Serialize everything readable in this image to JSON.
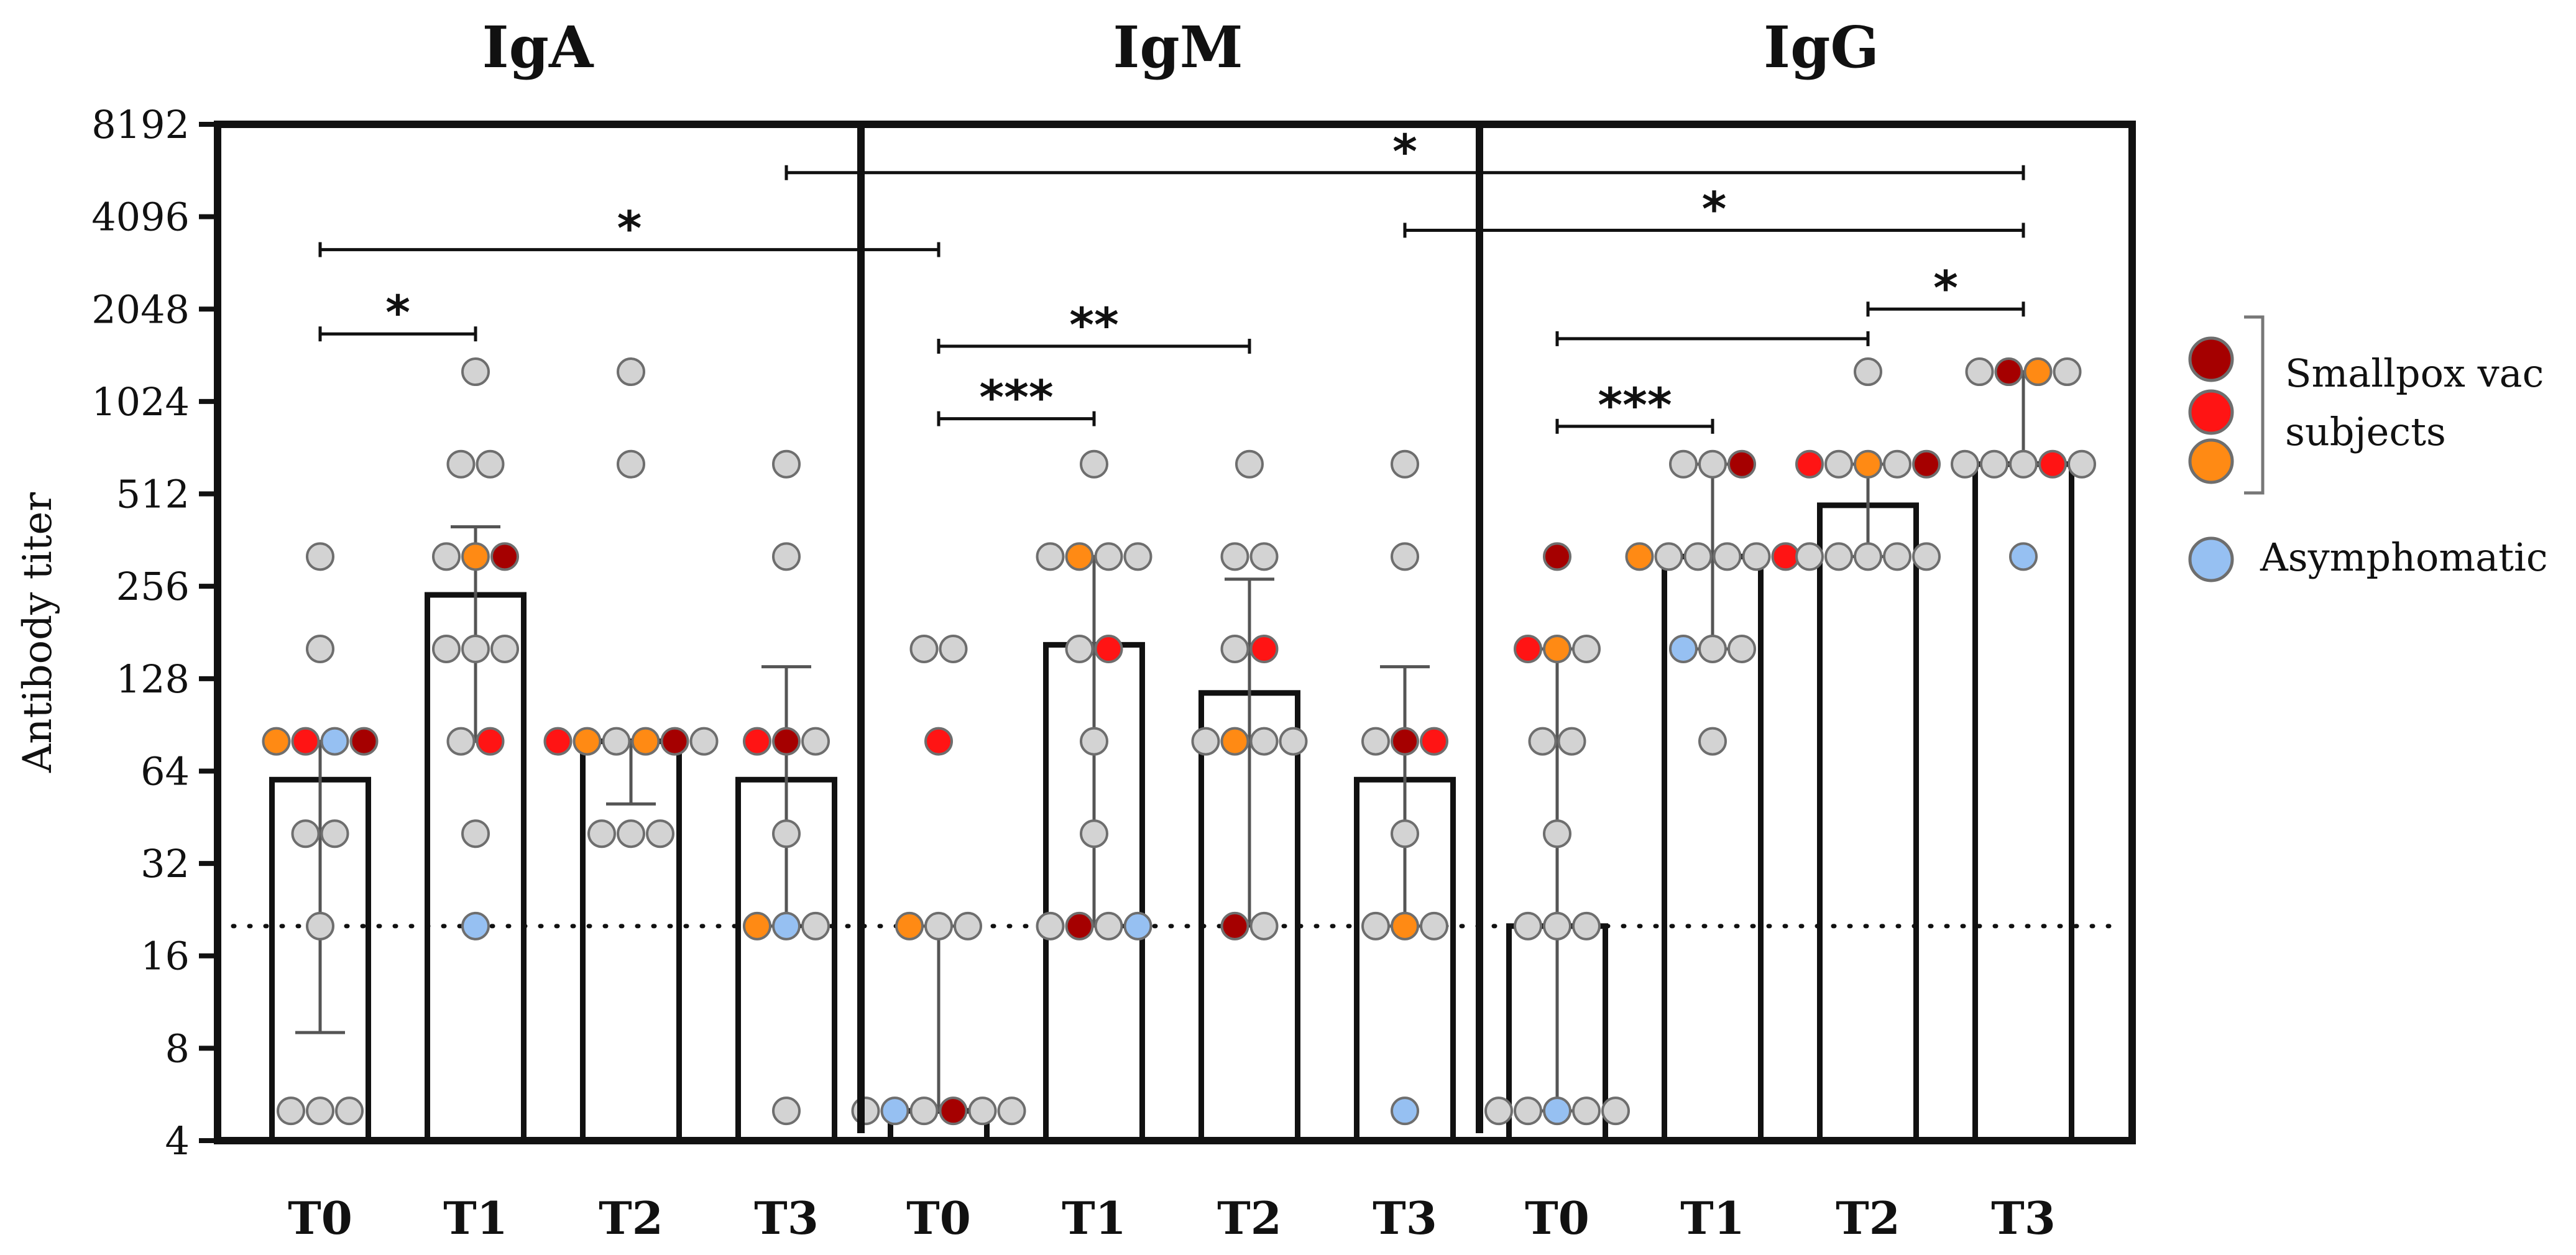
{
  "chart_data": {
    "type": "bar",
    "ylabel": "Antibody titer",
    "yscale": "log2",
    "ylim": [
      4,
      8192
    ],
    "yticks": [
      "4",
      "8",
      "16",
      "32",
      "64",
      "128",
      "256",
      "512",
      "1024",
      "2048",
      "4096",
      "8192"
    ],
    "threshold_line": 20,
    "panels": [
      {
        "title": "IgA",
        "groups": [
          {
            "label": "T0",
            "bar": 60,
            "error": [
              9,
              80
            ],
            "points": [
              [
                5,
                "gray"
              ],
              [
                5,
                "gray"
              ],
              [
                5,
                "gray"
              ],
              [
                20,
                "gray"
              ],
              [
                40,
                "gray"
              ],
              [
                40,
                "gray"
              ],
              [
                80,
                "orange"
              ],
              [
                80,
                "red"
              ],
              [
                80,
                "blue"
              ],
              [
                80,
                "darkred"
              ],
              [
                320,
                "gray"
              ],
              [
                160,
                "gray"
              ]
            ]
          },
          {
            "label": "T1",
            "bar": 240,
            "error": [
              80,
              400
            ],
            "points": [
              [
                20,
                "blue"
              ],
              [
                40,
                "gray"
              ],
              [
                80,
                "gray"
              ],
              [
                80,
                "red"
              ],
              [
                160,
                "gray"
              ],
              [
                160,
                "gray"
              ],
              [
                160,
                "gray"
              ],
              [
                320,
                "gray"
              ],
              [
                320,
                "orange"
              ],
              [
                320,
                "darkred"
              ],
              [
                640,
                "gray"
              ],
              [
                640,
                "gray"
              ],
              [
                1280,
                "gray"
              ]
            ]
          },
          {
            "label": "T2",
            "bar": 80,
            "error": [
              50,
              80
            ],
            "points": [
              [
                40,
                "gray"
              ],
              [
                40,
                "gray"
              ],
              [
                40,
                "gray"
              ],
              [
                80,
                "red"
              ],
              [
                80,
                "orange"
              ],
              [
                80,
                "gray"
              ],
              [
                80,
                "orange"
              ],
              [
                80,
                "darkred"
              ],
              [
                80,
                "gray"
              ],
              [
                640,
                "gray"
              ],
              [
                1280,
                "gray"
              ]
            ]
          },
          {
            "label": "T3",
            "bar": 60,
            "error": [
              20,
              140
            ],
            "points": [
              [
                5,
                "gray"
              ],
              [
                20,
                "orange"
              ],
              [
                20,
                "blue"
              ],
              [
                20,
                "gray"
              ],
              [
                40,
                "gray"
              ],
              [
                80,
                "red"
              ],
              [
                80,
                "darkred"
              ],
              [
                80,
                "gray"
              ],
              [
                320,
                "gray"
              ],
              [
                640,
                "gray"
              ]
            ]
          }
        ]
      },
      {
        "title": "IgM",
        "groups": [
          {
            "label": "T0",
            "bar": 5,
            "error": [
              5,
              20
            ],
            "points": [
              [
                5,
                "gray"
              ],
              [
                5,
                "blue"
              ],
              [
                5,
                "gray"
              ],
              [
                5,
                "darkred"
              ],
              [
                5,
                "gray"
              ],
              [
                5,
                "gray"
              ],
              [
                20,
                "orange"
              ],
              [
                20,
                "gray"
              ],
              [
                20,
                "gray"
              ],
              [
                80,
                "red"
              ],
              [
                160,
                "gray"
              ],
              [
                160,
                "gray"
              ]
            ]
          },
          {
            "label": "T1",
            "bar": 165,
            "error": [
              20,
              320
            ],
            "points": [
              [
                20,
                "gray"
              ],
              [
                20,
                "darkred"
              ],
              [
                20,
                "gray"
              ],
              [
                20,
                "blue"
              ],
              [
                40,
                "gray"
              ],
              [
                80,
                "gray"
              ],
              [
                160,
                "gray"
              ],
              [
                160,
                "red"
              ],
              [
                320,
                "gray"
              ],
              [
                320,
                "orange"
              ],
              [
                320,
                "gray"
              ],
              [
                320,
                "gray"
              ],
              [
                640,
                "gray"
              ]
            ]
          },
          {
            "label": "T2",
            "bar": 115,
            "error": [
              20,
              270
            ],
            "points": [
              [
                20,
                "darkred"
              ],
              [
                20,
                "gray"
              ],
              [
                80,
                "gray"
              ],
              [
                80,
                "orange"
              ],
              [
                80,
                "gray"
              ],
              [
                80,
                "gray"
              ],
              [
                160,
                "gray"
              ],
              [
                160,
                "red"
              ],
              [
                320,
                "gray"
              ],
              [
                320,
                "gray"
              ],
              [
                640,
                "gray"
              ]
            ]
          },
          {
            "label": "T3",
            "bar": 60,
            "error": [
              20,
              140
            ],
            "points": [
              [
                5,
                "blue"
              ],
              [
                20,
                "gray"
              ],
              [
                20,
                "orange"
              ],
              [
                20,
                "gray"
              ],
              [
                40,
                "gray"
              ],
              [
                80,
                "gray"
              ],
              [
                80,
                "darkred"
              ],
              [
                80,
                "red"
              ],
              [
                320,
                "gray"
              ],
              [
                640,
                "gray"
              ]
            ]
          }
        ]
      },
      {
        "title": "IgG",
        "groups": [
          {
            "label": "T0",
            "bar": 20,
            "error": [
              5,
              160
            ],
            "points": [
              [
                5,
                "gray"
              ],
              [
                5,
                "gray"
              ],
              [
                5,
                "blue"
              ],
              [
                5,
                "gray"
              ],
              [
                5,
                "gray"
              ],
              [
                20,
                "gray"
              ],
              [
                20,
                "gray"
              ],
              [
                20,
                "gray"
              ],
              [
                40,
                "gray"
              ],
              [
                80,
                "gray"
              ],
              [
                80,
                "gray"
              ],
              [
                160,
                "red"
              ],
              [
                160,
                "orange"
              ],
              [
                160,
                "gray"
              ],
              [
                320,
                "darkred"
              ]
            ]
          },
          {
            "label": "T1",
            "bar": 320,
            "error": [
              160,
              640
            ],
            "points": [
              [
                80,
                "gray"
              ],
              [
                160,
                "blue"
              ],
              [
                160,
                "gray"
              ],
              [
                160,
                "gray"
              ],
              [
                320,
                "orange"
              ],
              [
                320,
                "gray"
              ],
              [
                320,
                "gray"
              ],
              [
                320,
                "gray"
              ],
              [
                320,
                "gray"
              ],
              [
                320,
                "red"
              ],
              [
                640,
                "gray"
              ],
              [
                640,
                "gray"
              ],
              [
                640,
                "darkred"
              ]
            ]
          },
          {
            "label": "T2",
            "bar": 470,
            "error": [
              320,
              640
            ],
            "points": [
              [
                320,
                "gray"
              ],
              [
                320,
                "gray"
              ],
              [
                320,
                "gray"
              ],
              [
                320,
                "gray"
              ],
              [
                320,
                "gray"
              ],
              [
                640,
                "red"
              ],
              [
                640,
                "gray"
              ],
              [
                640,
                "orange"
              ],
              [
                640,
                "gray"
              ],
              [
                640,
                "darkred"
              ],
              [
                1280,
                "gray"
              ]
            ]
          },
          {
            "label": "T3",
            "bar": 640,
            "error": [
              640,
              1280
            ],
            "points": [
              [
                320,
                "blue"
              ],
              [
                640,
                "gray"
              ],
              [
                640,
                "gray"
              ],
              [
                640,
                "gray"
              ],
              [
                640,
                "red"
              ],
              [
                640,
                "gray"
              ],
              [
                1280,
                "gray"
              ],
              [
                1280,
                "darkred"
              ],
              [
                1280,
                "orange"
              ],
              [
                1280,
                "gray"
              ]
            ]
          }
        ]
      }
    ],
    "significance": [
      {
        "from": [
          0,
          0
        ],
        "to": [
          0,
          1
        ],
        "label": "*",
        "y": 1700
      },
      {
        "from": [
          0,
          0
        ],
        "to": [
          1,
          0
        ],
        "label": "*",
        "y": 3200
      },
      {
        "from": [
          1,
          0
        ],
        "to": [
          1,
          1
        ],
        "label": "***",
        "y": 900
      },
      {
        "from": [
          1,
          0
        ],
        "to": [
          1,
          2
        ],
        "label": "**",
        "y": 1550
      },
      {
        "from": [
          0,
          3
        ],
        "to": [
          2,
          3
        ],
        "label": "*",
        "y": 5700
      },
      {
        "from": [
          1,
          3
        ],
        "to": [
          2,
          3
        ],
        "label": "*",
        "y": 3700
      },
      {
        "from": [
          2,
          0
        ],
        "to": [
          2,
          1
        ],
        "label": "***",
        "y": 850
      },
      {
        "from": [
          2,
          0
        ],
        "to": [
          2,
          2
        ],
        "label": "",
        "y": 1640
      },
      {
        "from": [
          2,
          2
        ],
        "to": [
          2,
          3
        ],
        "label": "*",
        "y": 2048
      }
    ],
    "legend": {
      "position": "right",
      "smallpox_label_line1": "Smallpox vac",
      "smallpox_label_line2": "subjects",
      "asymptomatic_label": "Asymphomatic"
    },
    "colors": {
      "gray": "#d3d3d3",
      "darkred": "#a50000",
      "red": "#ff1414",
      "orange": "#ff8a14",
      "blue": "#96c0f2",
      "marker_edge": "#6e6e6e",
      "axis": "#111111"
    }
  }
}
